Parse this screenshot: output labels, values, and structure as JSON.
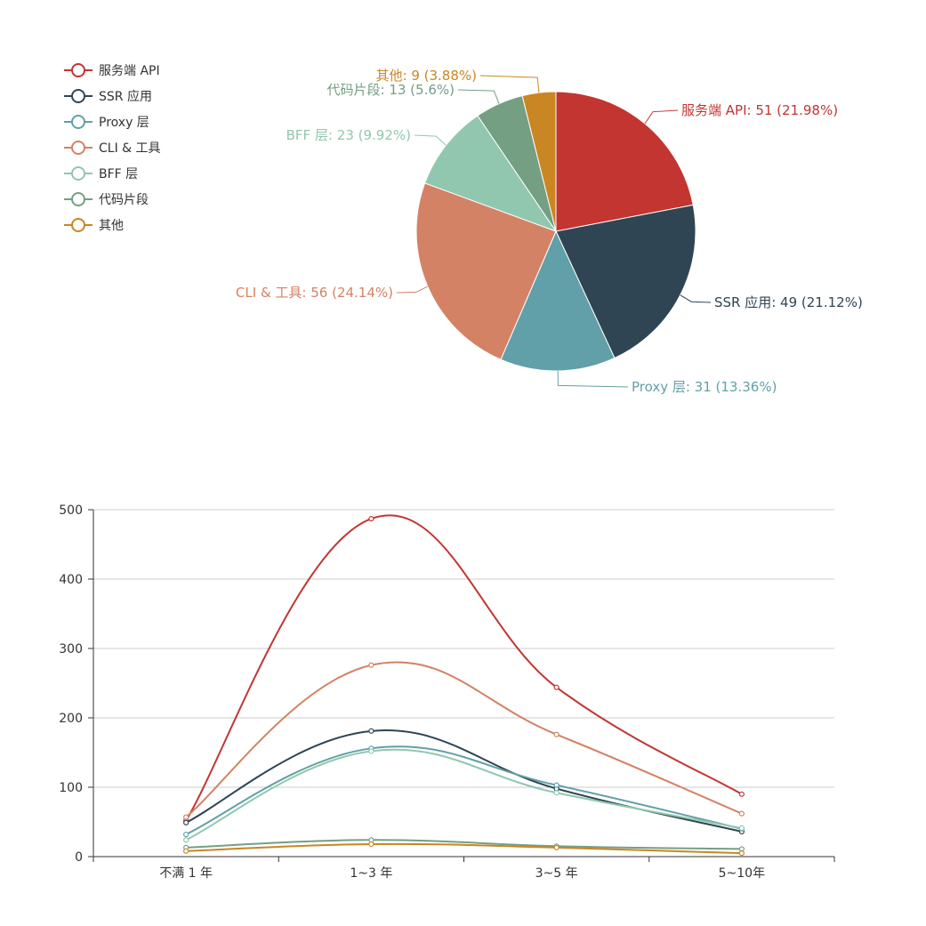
{
  "chart_data": [
    {
      "type": "pie",
      "legend_position": "top-left",
      "slices": [
        {
          "name": "服务端 API",
          "value": 51,
          "label": "服务端 API: 51 (21.98%)",
          "color": "#c23531"
        },
        {
          "name": "SSR 应用",
          "value": 49,
          "label": "SSR 应用: 49 (21.12%)",
          "color": "#2f4554"
        },
        {
          "name": "Proxy 层",
          "value": 31,
          "label": "Proxy 层: 31 (13.36%)",
          "color": "#61a0a8"
        },
        {
          "name": "CLI & 工具",
          "value": 56,
          "label": "CLI & 工具: 56 (24.14%)",
          "color": "#d48265"
        },
        {
          "name": "BFF 层",
          "value": 23,
          "label": "BFF 层: 23 (9.92%)",
          "color": "#91c7ae"
        },
        {
          "name": "代码片段",
          "value": 13,
          "label": "代码片段: 13 (5.6%)",
          "color": "#749f83"
        },
        {
          "name": "其他",
          "value": 9,
          "label": "其他: 9 (3.88%)",
          "color": "#ca8622"
        }
      ]
    },
    {
      "type": "line",
      "smooth": true,
      "categories": [
        "不满 1 年",
        "1~3 年",
        "3~5 年",
        "5~10年"
      ],
      "ylim": [
        0,
        500
      ],
      "yticks": [
        "0",
        "100",
        "200",
        "300",
        "400",
        "500"
      ],
      "grid": true,
      "series": [
        {
          "name": "服务端 API",
          "values": [
            52,
            487,
            244,
            90
          ],
          "color": "#c23531"
        },
        {
          "name": "SSR 应用",
          "values": [
            49,
            181,
            98,
            36
          ],
          "color": "#2f4554"
        },
        {
          "name": "Proxy 层",
          "values": [
            32,
            156,
            103,
            40
          ],
          "color": "#61a0a8"
        },
        {
          "name": "CLI & 工具",
          "values": [
            57,
            276,
            176,
            62
          ],
          "color": "#d48265"
        },
        {
          "name": "BFF 层",
          "values": [
            24,
            152,
            92,
            41
          ],
          "color": "#91c7ae"
        },
        {
          "name": "代码片段",
          "values": [
            13,
            24,
            15,
            11
          ],
          "color": "#749f83"
        },
        {
          "name": "其他",
          "values": [
            8,
            18,
            13,
            5
          ],
          "color": "#ca8622"
        }
      ]
    }
  ]
}
